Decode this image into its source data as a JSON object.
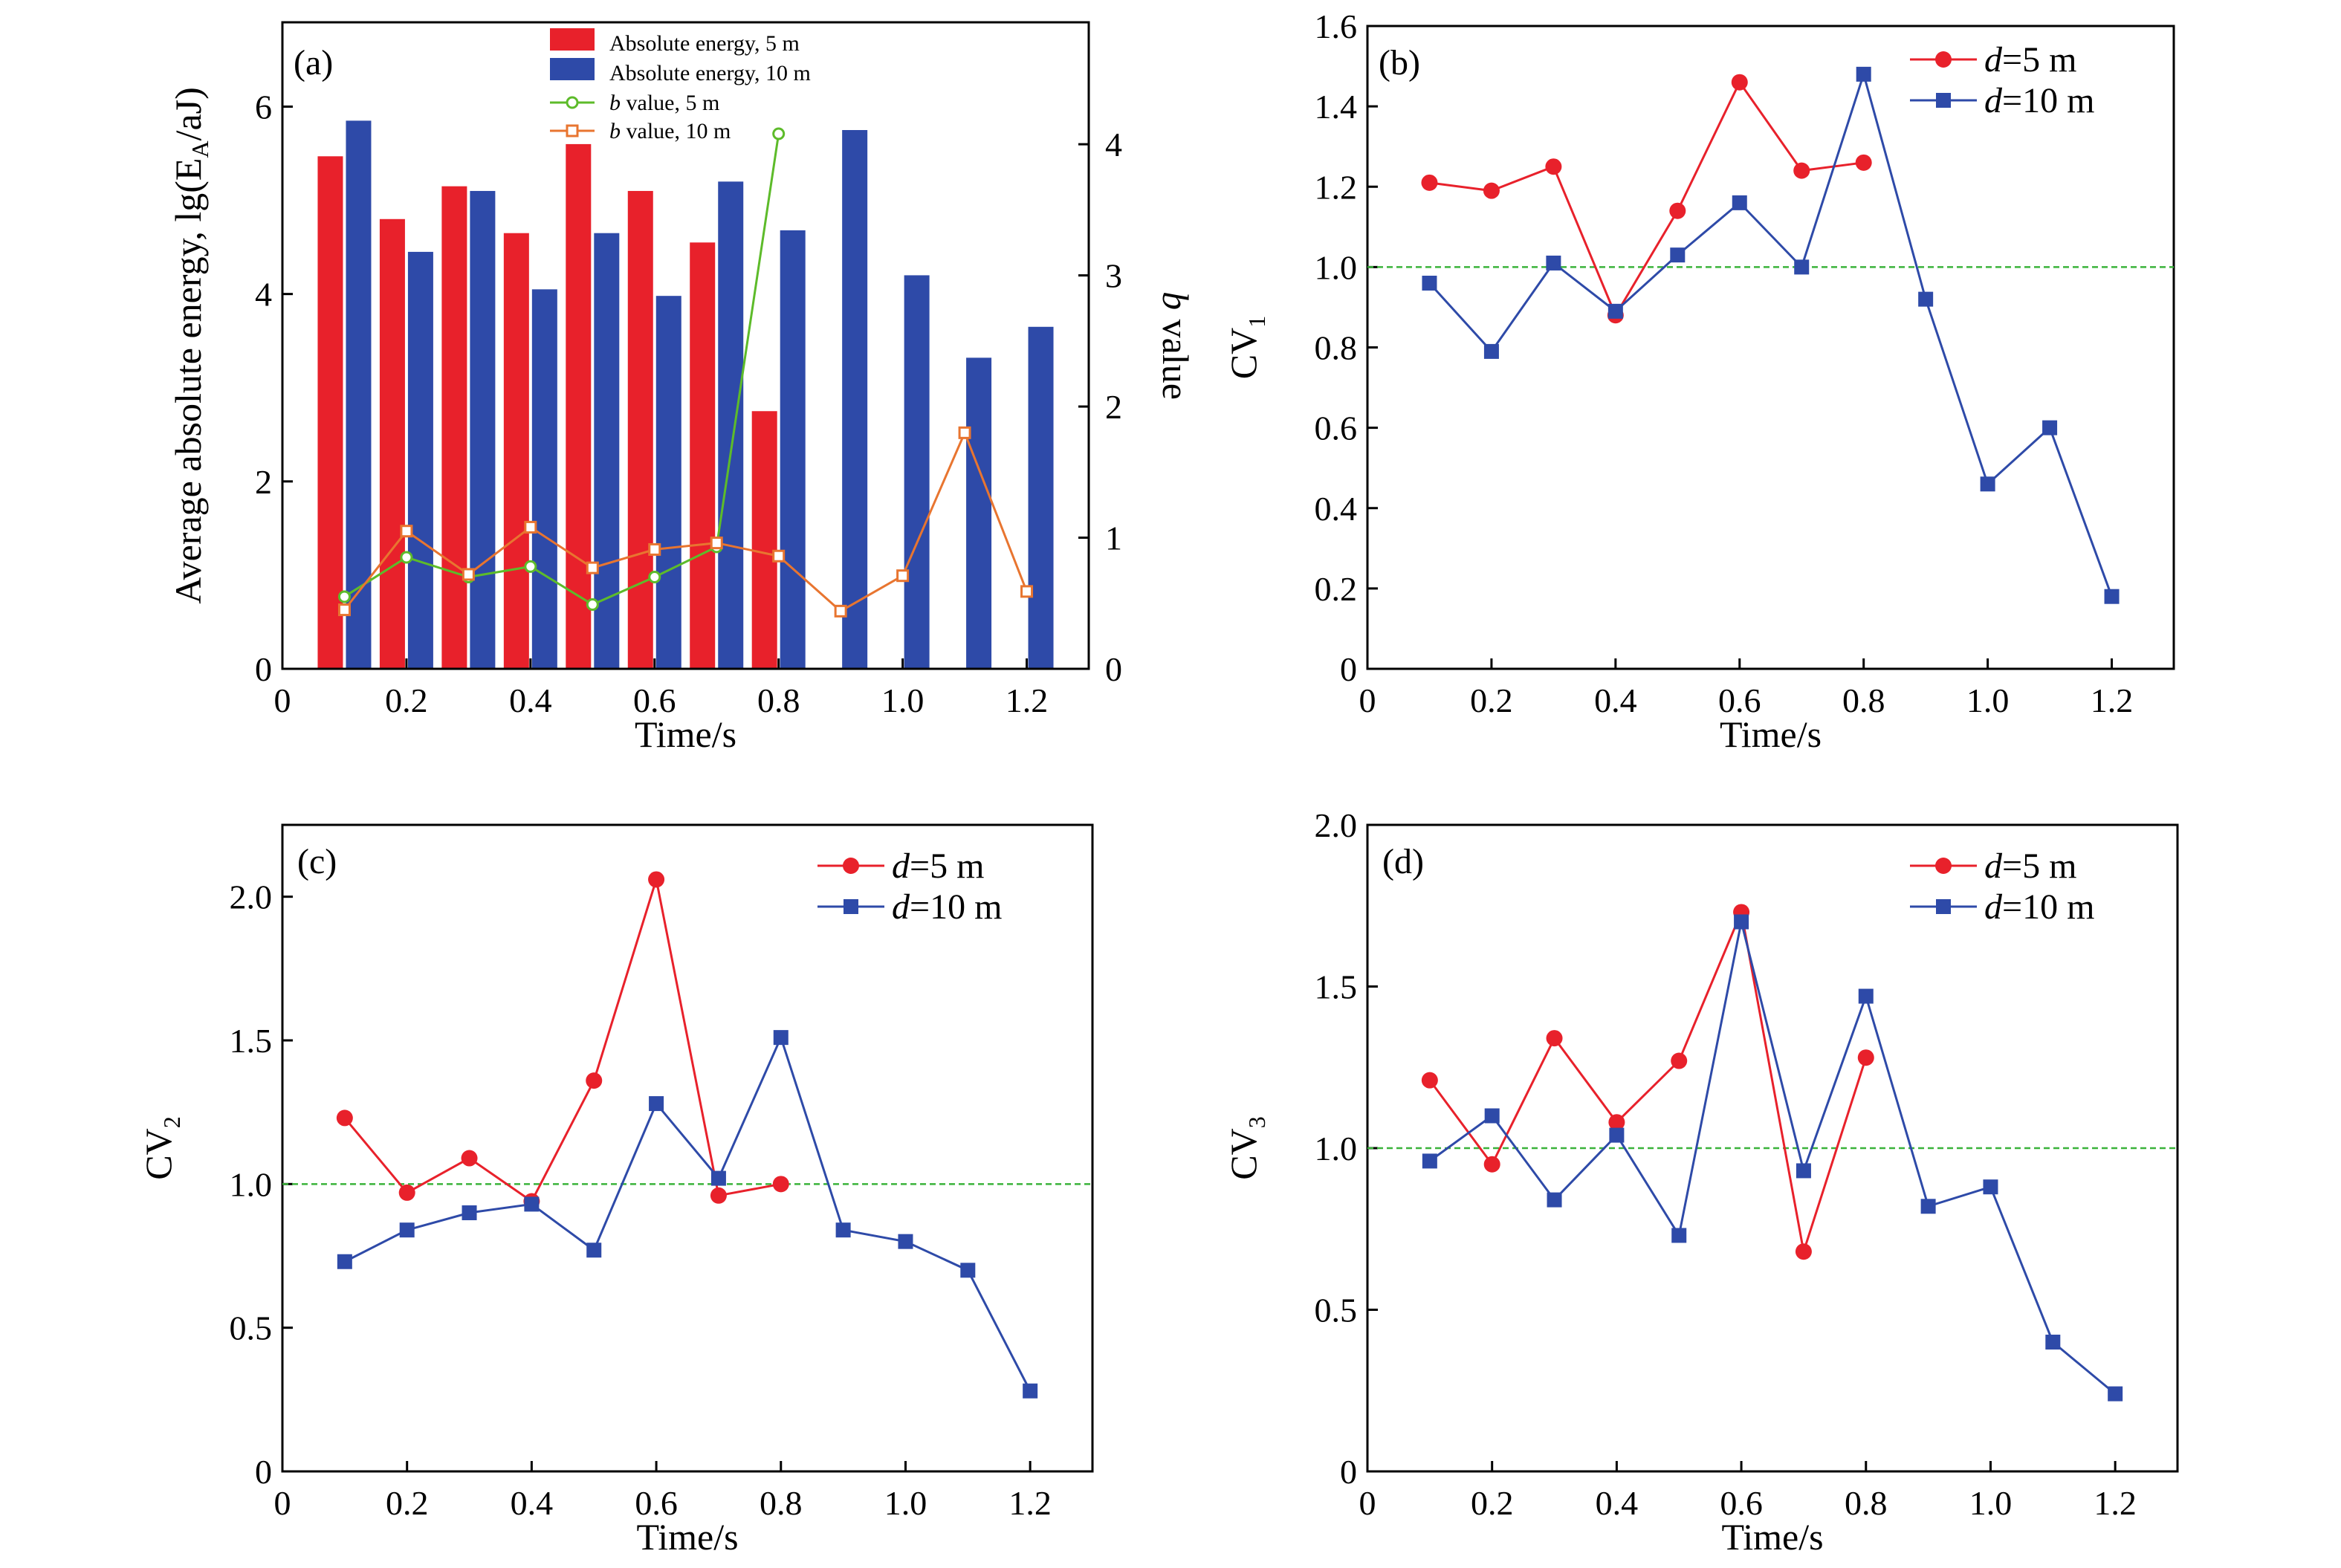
{
  "chart_data": [
    {
      "panel": "(a)",
      "type": "bar",
      "xlabel": "Time/s",
      "ylabel": "Average absolute energy, lg(E",
      "ylabel_sub": "A",
      "ylabel_end": "/aJ)",
      "y2label_italic": "b",
      "y2label_rest": " value",
      "xlim": [
        0,
        1.3
      ],
      "ylim": [
        0,
        6.9
      ],
      "y2lim": [
        0,
        4.93
      ],
      "xticks": [
        0,
        0.2,
        0.4,
        0.6,
        0.8,
        1.0,
        1.2
      ],
      "yticks": [
        0,
        2,
        4,
        6
      ],
      "y2ticks": [
        0,
        1,
        2,
        3,
        4
      ],
      "series": [
        {
          "name": "Absolute energy, 5 m",
          "kind": "bar",
          "color": "#e8212b",
          "x": [
            0.1,
            0.2,
            0.3,
            0.4,
            0.5,
            0.6,
            0.7,
            0.8
          ],
          "values": [
            5.47,
            4.8,
            5.15,
            4.65,
            5.6,
            5.1,
            4.55,
            2.75
          ]
        },
        {
          "name": "Absolute energy, 10 m",
          "kind": "bar",
          "color": "#2e4aa8",
          "x": [
            0.1,
            0.2,
            0.3,
            0.4,
            0.5,
            0.6,
            0.7,
            0.8,
            0.9,
            1.0,
            1.1,
            1.2
          ],
          "values": [
            5.85,
            4.45,
            5.1,
            4.05,
            4.65,
            3.98,
            5.2,
            4.68,
            5.75,
            4.2,
            3.32,
            3.65
          ]
        },
        {
          "name_italic": "b",
          "name": " value, 5 m",
          "kind": "line",
          "axis": "y2",
          "marker": "circle",
          "color": "#5dbb2a",
          "x": [
            0.1,
            0.2,
            0.3,
            0.4,
            0.5,
            0.6,
            0.7,
            0.8
          ],
          "values": [
            0.55,
            0.85,
            0.7,
            0.78,
            0.49,
            0.7,
            0.93,
            4.08
          ]
        },
        {
          "name_italic": "b",
          "name": " value, 10 m",
          "kind": "line",
          "axis": "y2",
          "marker": "square",
          "color": "#e87530",
          "x": [
            0.1,
            0.2,
            0.3,
            0.4,
            0.5,
            0.6,
            0.7,
            0.8,
            0.9,
            1.0,
            1.1,
            1.2
          ],
          "values": [
            0.45,
            1.05,
            0.72,
            1.08,
            0.77,
            0.91,
            0.96,
            0.86,
            0.44,
            0.71,
            1.8,
            0.59
          ]
        }
      ]
    },
    {
      "panel": "(b)",
      "type": "line",
      "xlabel": "Time/s",
      "ylabel": "CV",
      "ylabel_sub": "1",
      "xlim": [
        0,
        1.3
      ],
      "ylim": [
        0,
        1.6
      ],
      "xticks": [
        0,
        0.2,
        0.4,
        0.6,
        0.8,
        1.0,
        1.2
      ],
      "yticks": [
        0,
        0.2,
        0.4,
        0.6,
        0.8,
        1.0,
        1.2,
        1.4,
        1.6
      ],
      "reference_line": 1.0,
      "series": [
        {
          "name_italic": "d",
          "name": "=5 m",
          "marker": "circle",
          "color": "#e8212b",
          "x": [
            0.1,
            0.2,
            0.3,
            0.4,
            0.5,
            0.6,
            0.7,
            0.8
          ],
          "values": [
            1.21,
            1.19,
            1.25,
            0.88,
            1.14,
            1.46,
            1.24,
            1.26
          ]
        },
        {
          "name_italic": "d",
          "name": "=10 m",
          "marker": "square",
          "color": "#2e4aa8",
          "x": [
            0.1,
            0.2,
            0.3,
            0.4,
            0.5,
            0.6,
            0.7,
            0.8,
            0.9,
            1.0,
            1.1,
            1.2
          ],
          "values": [
            0.96,
            0.79,
            1.01,
            0.89,
            1.03,
            1.16,
            1.0,
            1.48,
            0.92,
            0.46,
            0.6,
            0.18
          ]
        }
      ]
    },
    {
      "panel": "(c)",
      "type": "line",
      "xlabel": "Time/s",
      "ylabel": "CV",
      "ylabel_sub": "2",
      "xlim": [
        0,
        1.3
      ],
      "ylim": [
        0,
        2.25
      ],
      "xticks": [
        0,
        0.2,
        0.4,
        0.6,
        0.8,
        1.0,
        1.2
      ],
      "yticks": [
        0,
        0.5,
        1.0,
        1.5,
        2.0
      ],
      "reference_line": 1.0,
      "series": [
        {
          "name_italic": "d",
          "name": "=5 m",
          "marker": "circle",
          "color": "#e8212b",
          "x": [
            0.1,
            0.2,
            0.3,
            0.4,
            0.5,
            0.6,
            0.7,
            0.8
          ],
          "values": [
            1.23,
            0.97,
            1.09,
            0.94,
            1.36,
            2.06,
            0.96,
            1.0
          ]
        },
        {
          "name_italic": "d",
          "name": "=10 m",
          "marker": "square",
          "color": "#2e4aa8",
          "x": [
            0.1,
            0.2,
            0.3,
            0.4,
            0.5,
            0.6,
            0.7,
            0.8,
            0.9,
            1.0,
            1.1,
            1.2
          ],
          "values": [
            0.73,
            0.84,
            0.9,
            0.93,
            0.77,
            1.28,
            1.02,
            1.51,
            0.84,
            0.8,
            0.7,
            0.28
          ]
        }
      ]
    },
    {
      "panel": "(d)",
      "type": "line",
      "xlabel": "Time/s",
      "ylabel": "CV",
      "ylabel_sub": "3",
      "xlim": [
        0,
        1.3
      ],
      "ylim": [
        0,
        2.0
      ],
      "xticks": [
        0,
        0.2,
        0.4,
        0.6,
        0.8,
        1.0,
        1.2
      ],
      "yticks": [
        0,
        0.5,
        1.0,
        1.5,
        2.0
      ],
      "reference_line": 1.0,
      "series": [
        {
          "name_italic": "d",
          "name": "=5 m",
          "marker": "circle",
          "color": "#e8212b",
          "x": [
            0.1,
            0.2,
            0.3,
            0.4,
            0.5,
            0.6,
            0.7,
            0.8
          ],
          "values": [
            1.21,
            0.95,
            1.34,
            1.08,
            1.27,
            1.73,
            0.68,
            1.28
          ]
        },
        {
          "name_italic": "d",
          "name": "=10 m",
          "marker": "square",
          "color": "#2e4aa8",
          "x": [
            0.1,
            0.2,
            0.3,
            0.4,
            0.5,
            0.6,
            0.7,
            0.8,
            0.9,
            1.0,
            1.1,
            1.2
          ],
          "values": [
            0.96,
            1.1,
            0.84,
            1.04,
            0.73,
            1.7,
            0.93,
            1.47,
            0.82,
            0.88,
            0.4,
            0.24
          ]
        }
      ]
    }
  ]
}
